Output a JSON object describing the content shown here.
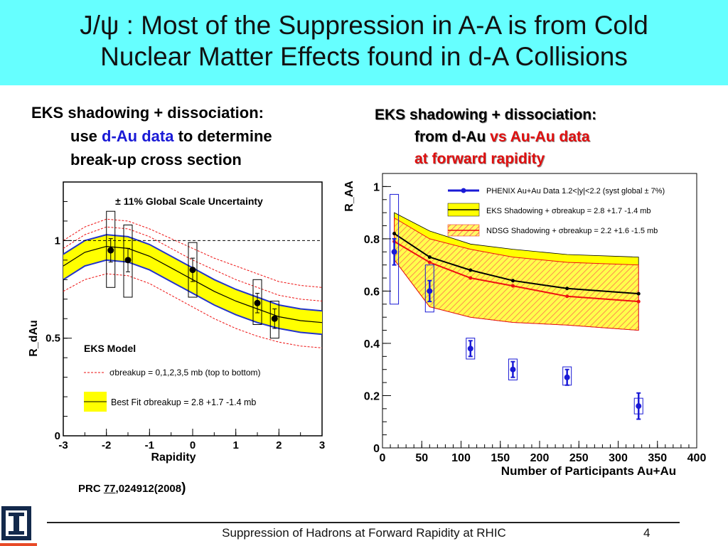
{
  "slide": {
    "title_line1": "J/ψ : Most of the Suppression in A-A is from Cold",
    "title_line2": "Nuclear Matter Effects found in d-A Collisions",
    "left_bullet": {
      "line1": "EKS shadowing + dissociation:",
      "line2_pre": "use ",
      "line2_highlight": "d-Au data",
      "line2_post": " to determine",
      "line3": "break-up cross section"
    },
    "right_bullet": {
      "line1": "EKS shadowing + dissociation:",
      "line2_pre": "from d-Au ",
      "line2_highlight": "vs Au-Au data",
      "line3": "at forward rapidity"
    },
    "citation": {
      "pre": "PRC ",
      "volume": "77",
      "post": ",024912(2008",
      "close": ")"
    },
    "footer": "Suppression of Hadrons at Forward Rapidity at RHIC",
    "page_number": "4",
    "logo_text": "I"
  },
  "colors": {
    "title_bg": "#66ffff",
    "band_yellow": "#ffff00",
    "band_blue": "#2233cc",
    "curve_red": "#ee1111",
    "data_blue": "#1a1ad6",
    "logo_blue": "#13294b",
    "logo_orange": "#e84a27"
  },
  "chart_data": [
    {
      "type": "line",
      "xlabel": "Rapidity",
      "ylabel": "R_dAu",
      "xlim": [
        -3,
        3
      ],
      "ylim": [
        0,
        1.3
      ],
      "xticks": [
        "-3",
        "-2",
        "-1",
        "0",
        "1",
        "2",
        "3"
      ],
      "yticks": [
        "0",
        "0.5",
        "1"
      ],
      "annotation": "± 11% Global Scale Uncertainty",
      "legend_title": "EKS Model",
      "legend": {
        "dashed": "σbreakup = 0,1,2,3,5 mb (top to bottom)",
        "best_fit": "Best Fit σbreakup = 2.8 +1.7 -1.4 mb"
      },
      "reference_line_y": 1,
      "points": [
        {
          "x": -1.9,
          "y": 0.95,
          "err": 0.06,
          "sys_lo": 0.76,
          "sys_hi": 1.15
        },
        {
          "x": -1.5,
          "y": 0.9,
          "err": 0.06,
          "sys_lo": 0.71,
          "sys_hi": 1.08
        },
        {
          "x": 0.0,
          "y": 0.85,
          "err": 0.06,
          "sys_lo": 0.71,
          "sys_hi": 0.99
        },
        {
          "x": 1.5,
          "y": 0.68,
          "err": 0.05,
          "sys_lo": 0.57,
          "sys_hi": 0.8
        },
        {
          "x": 1.9,
          "y": 0.6,
          "err": 0.05,
          "sys_lo": 0.5,
          "sys_hi": 0.69
        }
      ],
      "band_x": [
        -3,
        -2.5,
        -2,
        -1.5,
        -1,
        -0.5,
        0,
        0.5,
        1,
        1.5,
        2,
        2.5,
        3
      ],
      "band_upper": [
        0.93,
        1.0,
        1.03,
        1.02,
        0.98,
        0.92,
        0.86,
        0.8,
        0.75,
        0.71,
        0.67,
        0.65,
        0.64
      ],
      "band_center": [
        0.87,
        0.94,
        0.97,
        0.96,
        0.92,
        0.86,
        0.8,
        0.74,
        0.69,
        0.65,
        0.61,
        0.59,
        0.58
      ],
      "band_lower": [
        0.8,
        0.87,
        0.9,
        0.89,
        0.85,
        0.79,
        0.73,
        0.67,
        0.62,
        0.58,
        0.55,
        0.53,
        0.52
      ],
      "dashed_curves": [
        [
          1.0,
          1.07,
          1.11,
          1.1,
          1.06,
          1.01,
          0.96,
          0.91,
          0.87,
          0.83,
          0.79,
          0.77,
          0.76
        ],
        [
          0.96,
          1.03,
          1.07,
          1.06,
          1.02,
          0.96,
          0.9,
          0.85,
          0.8,
          0.76,
          0.72,
          0.7,
          0.69
        ],
        [
          0.9,
          0.97,
          1.0,
          0.99,
          0.95,
          0.89,
          0.83,
          0.77,
          0.72,
          0.68,
          0.64,
          0.62,
          0.61
        ],
        [
          0.84,
          0.91,
          0.94,
          0.93,
          0.89,
          0.83,
          0.77,
          0.71,
          0.66,
          0.62,
          0.58,
          0.56,
          0.55
        ],
        [
          0.74,
          0.8,
          0.83,
          0.82,
          0.78,
          0.72,
          0.66,
          0.6,
          0.55,
          0.51,
          0.48,
          0.46,
          0.45
        ]
      ]
    },
    {
      "type": "line",
      "xlabel": "Number of Participants Au+Au",
      "ylabel": "R_AA",
      "xlim": [
        0,
        400
      ],
      "ylim": [
        0,
        1.05
      ],
      "xticks": [
        "0",
        "50",
        "100",
        "150",
        "200",
        "250",
        "300",
        "350",
        "400"
      ],
      "yticks": [
        "0",
        "0.2",
        "0.4",
        "0.6",
        "0.8",
        "1"
      ],
      "legend": {
        "data": "PHENIX Au+Au Data 1.2<|y|<2.2 (syst global ± 7%)",
        "eks": "EKS Shadowing + σbreakup = 2.8 +1.7 -1.4 mb",
        "ndsg": "NDSG Shadowing + σbreakup = 2.2 +1.6 -1.5 mb"
      },
      "data_points": [
        {
          "x": 15,
          "y": 0.75,
          "err": 0.05,
          "sys_lo": 0.55,
          "sys_hi": 0.97
        },
        {
          "x": 60,
          "y": 0.6,
          "err": 0.04,
          "sys_lo": 0.52,
          "sys_hi": 0.7
        },
        {
          "x": 112,
          "y": 0.38,
          "err": 0.03,
          "sys_lo": 0.34,
          "sys_hi": 0.42
        },
        {
          "x": 166,
          "y": 0.3,
          "err": 0.03,
          "sys_lo": 0.26,
          "sys_hi": 0.34
        },
        {
          "x": 235,
          "y": 0.27,
          "err": 0.03,
          "sys_lo": 0.24,
          "sys_hi": 0.31
        },
        {
          "x": 326,
          "y": 0.16,
          "err": 0.05,
          "sys_lo": 0.13,
          "sys_hi": 0.19
        }
      ],
      "eks_x": [
        15,
        60,
        112,
        166,
        235,
        326
      ],
      "eks_upper": [
        0.9,
        0.83,
        0.78,
        0.76,
        0.74,
        0.73
      ],
      "eks_lower": [
        0.72,
        0.54,
        0.5,
        0.48,
        0.47,
        0.45
      ],
      "eks_center": [
        0.82,
        0.73,
        0.68,
        0.64,
        0.61,
        0.59
      ],
      "ndsg_x": [
        15,
        60,
        112,
        166,
        235,
        326
      ],
      "ndsg_upper": [
        0.88,
        0.8,
        0.76,
        0.73,
        0.71,
        0.7
      ],
      "ndsg_lower": [
        0.72,
        0.54,
        0.5,
        0.48,
        0.47,
        0.45
      ],
      "ndsg_center": [
        0.79,
        0.71,
        0.65,
        0.62,
        0.58,
        0.56
      ]
    }
  ]
}
